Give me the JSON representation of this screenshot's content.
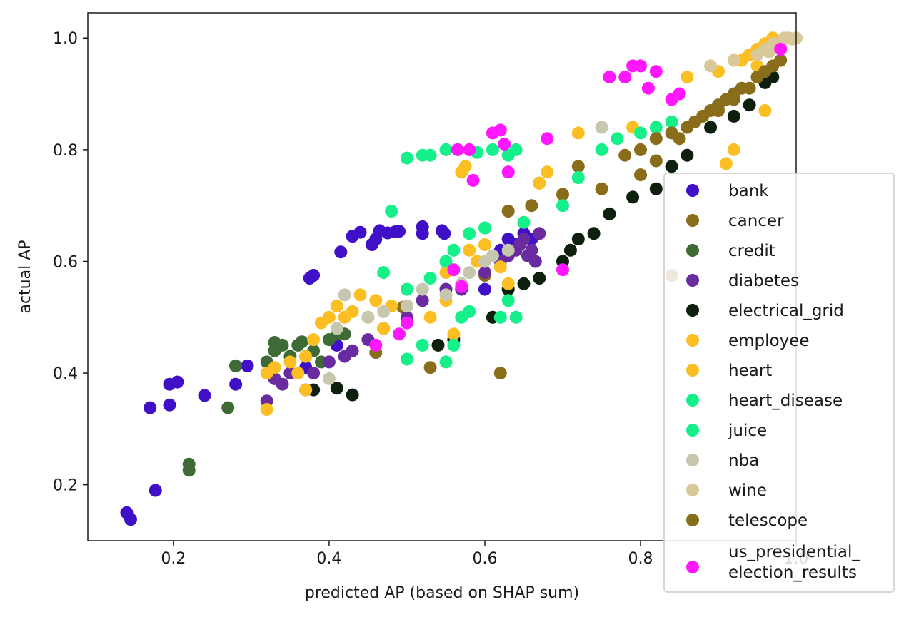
{
  "chart_data": {
    "type": "scatter",
    "title": "",
    "xlabel": "predicted AP (based on SHAP sum)",
    "ylabel": "actual AP",
    "xlim": [
      0.09,
      1.0
    ],
    "ylim": [
      0.1,
      1.045
    ],
    "xticks": [
      "0.2",
      "0.4",
      "0.6",
      "0.8",
      "1.0"
    ],
    "xtick_values": [
      0.2,
      0.4,
      0.6,
      0.8,
      1.0
    ],
    "yticks": [
      "0.2",
      "0.4",
      "0.6",
      "0.8",
      "1.0"
    ],
    "ytick_values": [
      0.2,
      0.4,
      0.6,
      0.8,
      1.0
    ],
    "grid": false,
    "legend_position": "lower-right",
    "series": [
      {
        "name": "bank",
        "color": "#4010c8",
        "points": [
          [
            0.14,
            0.15
          ],
          [
            0.145,
            0.138
          ],
          [
            0.17,
            0.338
          ],
          [
            0.177,
            0.19
          ],
          [
            0.195,
            0.343
          ],
          [
            0.195,
            0.38
          ],
          [
            0.205,
            0.384
          ],
          [
            0.24,
            0.36
          ],
          [
            0.28,
            0.38
          ],
          [
            0.28,
            0.413
          ],
          [
            0.295,
            0.413
          ],
          [
            0.37,
            0.41
          ],
          [
            0.375,
            0.57
          ],
          [
            0.38,
            0.575
          ],
          [
            0.41,
            0.45
          ],
          [
            0.415,
            0.617
          ],
          [
            0.43,
            0.645
          ],
          [
            0.44,
            0.652
          ],
          [
            0.455,
            0.63
          ],
          [
            0.46,
            0.64
          ],
          [
            0.465,
            0.655
          ],
          [
            0.475,
            0.651
          ],
          [
            0.485,
            0.653
          ],
          [
            0.49,
            0.654
          ],
          [
            0.52,
            0.65
          ],
          [
            0.52,
            0.662
          ],
          [
            0.545,
            0.655
          ],
          [
            0.548,
            0.65
          ],
          [
            0.6,
            0.55
          ],
          [
            0.62,
            0.62
          ],
          [
            0.63,
            0.64
          ],
          [
            0.64,
            0.63
          ],
          [
            0.65,
            0.65
          ],
          [
            0.66,
            0.64
          ]
        ]
      },
      {
        "name": "cancer",
        "color": "#8a6d1a",
        "points": [
          [
            0.46,
            0.437
          ],
          [
            0.495,
            0.518
          ],
          [
            0.53,
            0.41
          ],
          [
            0.6,
            0.575
          ],
          [
            0.62,
            0.4
          ],
          [
            0.63,
            0.69
          ],
          [
            0.66,
            0.7
          ],
          [
            0.67,
            0.74
          ],
          [
            0.7,
            0.72
          ],
          [
            0.72,
            0.77
          ],
          [
            0.75,
            0.73
          ],
          [
            0.8,
            0.755
          ],
          [
            0.82,
            0.78
          ],
          [
            0.85,
            0.82
          ],
          [
            0.87,
            0.85
          ],
          [
            0.9,
            0.87
          ],
          [
            0.92,
            0.89
          ],
          [
            0.94,
            0.91
          ],
          [
            0.84,
            0.575
          ]
        ]
      },
      {
        "name": "credit",
        "color": "#3e6b35",
        "points": [
          [
            0.22,
            0.226
          ],
          [
            0.22,
            0.237
          ],
          [
            0.27,
            0.338
          ],
          [
            0.28,
            0.413
          ],
          [
            0.32,
            0.42
          ],
          [
            0.33,
            0.44
          ],
          [
            0.33,
            0.455
          ],
          [
            0.34,
            0.45
          ],
          [
            0.35,
            0.43
          ],
          [
            0.36,
            0.45
          ],
          [
            0.365,
            0.456
          ],
          [
            0.37,
            0.43
          ],
          [
            0.38,
            0.44
          ],
          [
            0.39,
            0.42
          ],
          [
            0.4,
            0.46
          ],
          [
            0.41,
            0.47
          ],
          [
            0.42,
            0.47
          ]
        ]
      },
      {
        "name": "diabetes",
        "color": "#6a2aa0",
        "points": [
          [
            0.32,
            0.35
          ],
          [
            0.33,
            0.39
          ],
          [
            0.34,
            0.38
          ],
          [
            0.35,
            0.4
          ],
          [
            0.37,
            0.37
          ],
          [
            0.38,
            0.4
          ],
          [
            0.4,
            0.42
          ],
          [
            0.42,
            0.43
          ],
          [
            0.43,
            0.44
          ],
          [
            0.45,
            0.46
          ],
          [
            0.47,
            0.48
          ],
          [
            0.5,
            0.5
          ],
          [
            0.52,
            0.53
          ],
          [
            0.55,
            0.55
          ],
          [
            0.57,
            0.55
          ],
          [
            0.6,
            0.58
          ],
          [
            0.62,
            0.6
          ],
          [
            0.63,
            0.61
          ],
          [
            0.64,
            0.62
          ],
          [
            0.645,
            0.63
          ],
          [
            0.65,
            0.64
          ],
          [
            0.655,
            0.61
          ],
          [
            0.66,
            0.62
          ],
          [
            0.665,
            0.6
          ],
          [
            0.67,
            0.65
          ]
        ]
      },
      {
        "name": "electrical_grid",
        "color": "#0d1f0d",
        "points": [
          [
            0.38,
            0.37
          ],
          [
            0.41,
            0.373
          ],
          [
            0.43,
            0.361
          ],
          [
            0.54,
            0.45
          ],
          [
            0.56,
            0.46
          ],
          [
            0.61,
            0.5
          ],
          [
            0.63,
            0.55
          ],
          [
            0.65,
            0.56
          ],
          [
            0.67,
            0.57
          ],
          [
            0.7,
            0.6
          ],
          [
            0.71,
            0.62
          ],
          [
            0.72,
            0.64
          ],
          [
            0.74,
            0.65
          ],
          [
            0.76,
            0.685
          ],
          [
            0.79,
            0.715
          ],
          [
            0.82,
            0.73
          ],
          [
            0.84,
            0.77
          ],
          [
            0.86,
            0.79
          ],
          [
            0.89,
            0.84
          ],
          [
            0.92,
            0.86
          ],
          [
            0.94,
            0.88
          ],
          [
            0.96,
            0.92
          ],
          [
            0.97,
            0.93
          ]
        ]
      },
      {
        "name": "employee",
        "color": "#fbbf24",
        "points": [
          [
            0.32,
            0.335
          ],
          [
            0.32,
            0.4
          ],
          [
            0.35,
            0.42
          ],
          [
            0.36,
            0.4
          ],
          [
            0.37,
            0.37
          ],
          [
            0.38,
            0.46
          ],
          [
            0.39,
            0.49
          ],
          [
            0.41,
            0.52
          ],
          [
            0.42,
            0.5
          ],
          [
            0.44,
            0.54
          ],
          [
            0.46,
            0.53
          ],
          [
            0.47,
            0.48
          ],
          [
            0.5,
            0.52
          ],
          [
            0.53,
            0.5
          ],
          [
            0.55,
            0.53
          ],
          [
            0.56,
            0.47
          ],
          [
            0.58,
            0.62
          ],
          [
            0.6,
            0.63
          ],
          [
            0.63,
            0.56
          ],
          [
            0.67,
            0.74
          ],
          [
            0.72,
            0.83
          ],
          [
            0.79,
            0.84
          ],
          [
            0.86,
            0.93
          ],
          [
            0.9,
            0.94
          ]
        ]
      },
      {
        "name": "heart",
        "color": "#fbbf24",
        "points": [
          [
            0.33,
            0.41
          ],
          [
            0.37,
            0.43
          ],
          [
            0.4,
            0.5
          ],
          [
            0.43,
            0.51
          ],
          [
            0.45,
            0.5
          ],
          [
            0.48,
            0.52
          ],
          [
            0.5,
            0.55
          ],
          [
            0.55,
            0.58
          ],
          [
            0.57,
            0.76
          ],
          [
            0.575,
            0.77
          ],
          [
            0.59,
            0.6
          ],
          [
            0.62,
            0.59
          ],
          [
            0.68,
            0.76
          ],
          [
            0.91,
            0.775
          ],
          [
            0.92,
            0.8
          ],
          [
            0.93,
            0.96
          ],
          [
            0.94,
            0.97
          ],
          [
            0.95,
            0.98
          ],
          [
            0.96,
            0.99
          ],
          [
            0.97,
            1.0
          ],
          [
            0.96,
            0.87
          ],
          [
            0.95,
            0.95
          ]
        ]
      },
      {
        "name": "heart_disease",
        "color": "#15f08a",
        "points": [
          [
            0.5,
            0.425
          ],
          [
            0.52,
            0.45
          ],
          [
            0.55,
            0.42
          ],
          [
            0.56,
            0.45
          ],
          [
            0.57,
            0.5
          ],
          [
            0.58,
            0.51
          ],
          [
            0.62,
            0.5
          ],
          [
            0.63,
            0.53
          ],
          [
            0.64,
            0.5
          ],
          [
            0.5,
            0.55
          ],
          [
            0.53,
            0.57
          ],
          [
            0.55,
            0.6
          ],
          [
            0.56,
            0.62
          ],
          [
            0.58,
            0.65
          ],
          [
            0.6,
            0.66
          ]
        ]
      },
      {
        "name": "juice",
        "color": "#15f08a",
        "points": [
          [
            0.47,
            0.58
          ],
          [
            0.48,
            0.69
          ],
          [
            0.5,
            0.785
          ],
          [
            0.52,
            0.79
          ],
          [
            0.53,
            0.79
          ],
          [
            0.55,
            0.8
          ],
          [
            0.59,
            0.795
          ],
          [
            0.61,
            0.8
          ],
          [
            0.63,
            0.79
          ],
          [
            0.64,
            0.8
          ],
          [
            0.65,
            0.67
          ],
          [
            0.7,
            0.7
          ],
          [
            0.72,
            0.75
          ],
          [
            0.75,
            0.8
          ],
          [
            0.77,
            0.82
          ],
          [
            0.8,
            0.83
          ],
          [
            0.82,
            0.84
          ],
          [
            0.84,
            0.85
          ],
          [
            0.88,
            0.86
          ],
          [
            0.9,
            0.88
          ]
        ]
      },
      {
        "name": "nba",
        "color": "#c7c7b0",
        "points": [
          [
            0.4,
            0.39
          ],
          [
            0.41,
            0.48
          ],
          [
            0.42,
            0.54
          ],
          [
            0.45,
            0.5
          ],
          [
            0.47,
            0.51
          ],
          [
            0.5,
            0.52
          ],
          [
            0.52,
            0.55
          ],
          [
            0.55,
            0.54
          ],
          [
            0.57,
            0.56
          ],
          [
            0.58,
            0.58
          ],
          [
            0.6,
            0.6
          ],
          [
            0.61,
            0.61
          ],
          [
            0.63,
            0.62
          ],
          [
            0.75,
            0.84
          ]
        ]
      },
      {
        "name": "wine",
        "color": "#d9c99a",
        "points": [
          [
            0.89,
            0.95
          ],
          [
            0.92,
            0.96
          ],
          [
            0.95,
            0.97
          ],
          [
            0.96,
            0.98
          ],
          [
            0.97,
            0.99
          ],
          [
            0.98,
            0.99
          ],
          [
            0.985,
            1.0
          ],
          [
            0.99,
            1.0
          ],
          [
            0.995,
            0.998
          ],
          [
            1.0,
            1.0
          ],
          [
            0.975,
            0.985
          ],
          [
            0.965,
            0.975
          ]
        ]
      },
      {
        "name": "telescope",
        "color": "#8a6d1a",
        "points": [
          [
            0.78,
            0.79
          ],
          [
            0.8,
            0.8
          ],
          [
            0.82,
            0.82
          ],
          [
            0.84,
            0.83
          ],
          [
            0.86,
            0.84
          ],
          [
            0.88,
            0.86
          ],
          [
            0.89,
            0.87
          ],
          [
            0.9,
            0.88
          ],
          [
            0.91,
            0.89
          ],
          [
            0.92,
            0.9
          ],
          [
            0.93,
            0.91
          ],
          [
            0.95,
            0.93
          ],
          [
            0.96,
            0.94
          ],
          [
            0.97,
            0.95
          ],
          [
            0.98,
            0.96
          ]
        ]
      },
      {
        "name": "us_presidential_election_results",
        "color": "#ff18ff",
        "points": [
          [
            0.46,
            0.45
          ],
          [
            0.49,
            0.47
          ],
          [
            0.5,
            0.49
          ],
          [
            0.56,
            0.585
          ],
          [
            0.57,
            0.555
          ],
          [
            0.565,
            0.8
          ],
          [
            0.58,
            0.8
          ],
          [
            0.585,
            0.745
          ],
          [
            0.61,
            0.83
          ],
          [
            0.62,
            0.835
          ],
          [
            0.625,
            0.81
          ],
          [
            0.63,
            0.76
          ],
          [
            0.68,
            0.82
          ],
          [
            0.7,
            0.585
          ],
          [
            0.76,
            0.93
          ],
          [
            0.78,
            0.93
          ],
          [
            0.79,
            0.95
          ],
          [
            0.8,
            0.95
          ],
          [
            0.81,
            0.91
          ],
          [
            0.82,
            0.94
          ],
          [
            0.84,
            0.89
          ],
          [
            0.85,
            0.9
          ],
          [
            0.98,
            0.98
          ]
        ]
      }
    ]
  }
}
